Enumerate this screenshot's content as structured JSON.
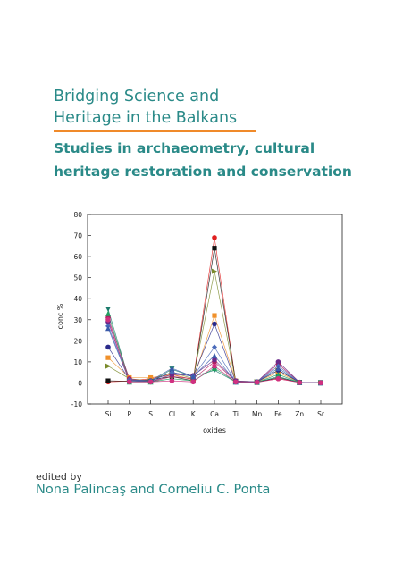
{
  "cover": {
    "title_line1": "Bridging Science and",
    "title_line2": "Heritage in the Balkans",
    "subtitle_line1": "Studies in archaeometry, cultural",
    "subtitle_line2": "heritage restoration and conservation",
    "edited_label": "edited by",
    "editors": "Nona Palincaş and Corneliu C. Ponta",
    "colors": {
      "teal": "#2a8a88",
      "orange_rule": "#f08a2a"
    }
  },
  "chart_data": {
    "type": "line",
    "xlabel": "oxides",
    "ylabel": "conc %",
    "categories": [
      "Si",
      "P",
      "S",
      "Cl",
      "K",
      "Ca",
      "Ti",
      "Mn",
      "Fe",
      "Zn",
      "Sr"
    ],
    "ylim": [
      -10,
      80
    ],
    "yticks": [
      -10,
      0,
      10,
      20,
      30,
      40,
      50,
      60,
      70,
      80
    ],
    "series": [
      {
        "color": "#e02020",
        "marker": "circle",
        "values": [
          0.5,
          1,
          2,
          4,
          1.5,
          69,
          0.5,
          0.5,
          2,
          0.3,
          0.1
        ]
      },
      {
        "color": "#111111",
        "marker": "square",
        "values": [
          1,
          0.8,
          1.5,
          3,
          1,
          64,
          0.5,
          0.3,
          2.5,
          0.3,
          0.1
        ]
      },
      {
        "color": "#7a8a2a",
        "marker": "triangle-right",
        "values": [
          8,
          2,
          1,
          5,
          2,
          53,
          0.5,
          0.5,
          6,
          0.3,
          0.1
        ]
      },
      {
        "color": "#f0902a",
        "marker": "square",
        "values": [
          12,
          2.5,
          2.5,
          4,
          1.5,
          32,
          1,
          0.5,
          5,
          0.3,
          0.1
        ]
      },
      {
        "color": "#2a2a8a",
        "marker": "circle",
        "values": [
          17,
          1.5,
          1,
          5,
          3,
          28,
          0.5,
          0.5,
          6,
          0.3,
          0.1
        ]
      },
      {
        "color": "#1a7a6a",
        "marker": "triangle-down",
        "values": [
          35,
          1,
          0.5,
          6.5,
          3,
          6,
          0.5,
          0.3,
          3,
          0.2,
          0.1
        ]
      },
      {
        "color": "#b02060",
        "marker": "circle",
        "values": [
          31,
          2,
          0.5,
          3,
          2,
          10,
          0.8,
          0.5,
          9,
          0.3,
          0.1
        ]
      },
      {
        "color": "#6a2a8a",
        "marker": "circle",
        "values": [
          29,
          1,
          0.5,
          4,
          3.5,
          11,
          1,
          0.5,
          10,
          0.3,
          0.1
        ]
      },
      {
        "color": "#4a6aba",
        "marker": "diamond",
        "values": [
          27,
          1.5,
          1,
          5,
          3,
          17,
          0.5,
          0.5,
          8,
          0.3,
          0.1
        ]
      },
      {
        "color": "#20a060",
        "marker": "triangle-up",
        "values": [
          33,
          0.5,
          0.5,
          2,
          1,
          7,
          0.5,
          0.3,
          4,
          0.2,
          0.1
        ]
      },
      {
        "color": "#3a5aaa",
        "marker": "triangle-up",
        "values": [
          26,
          1,
          1,
          7,
          3,
          13,
          0.5,
          0.5,
          7,
          0.3,
          0.1
        ]
      },
      {
        "color": "#d03080",
        "marker": "circle",
        "values": [
          30,
          0.5,
          0.5,
          1,
          0.5,
          8,
          0.5,
          0.3,
          2,
          0.2,
          0.1
        ]
      }
    ],
    "grid": false,
    "legend": "none"
  }
}
